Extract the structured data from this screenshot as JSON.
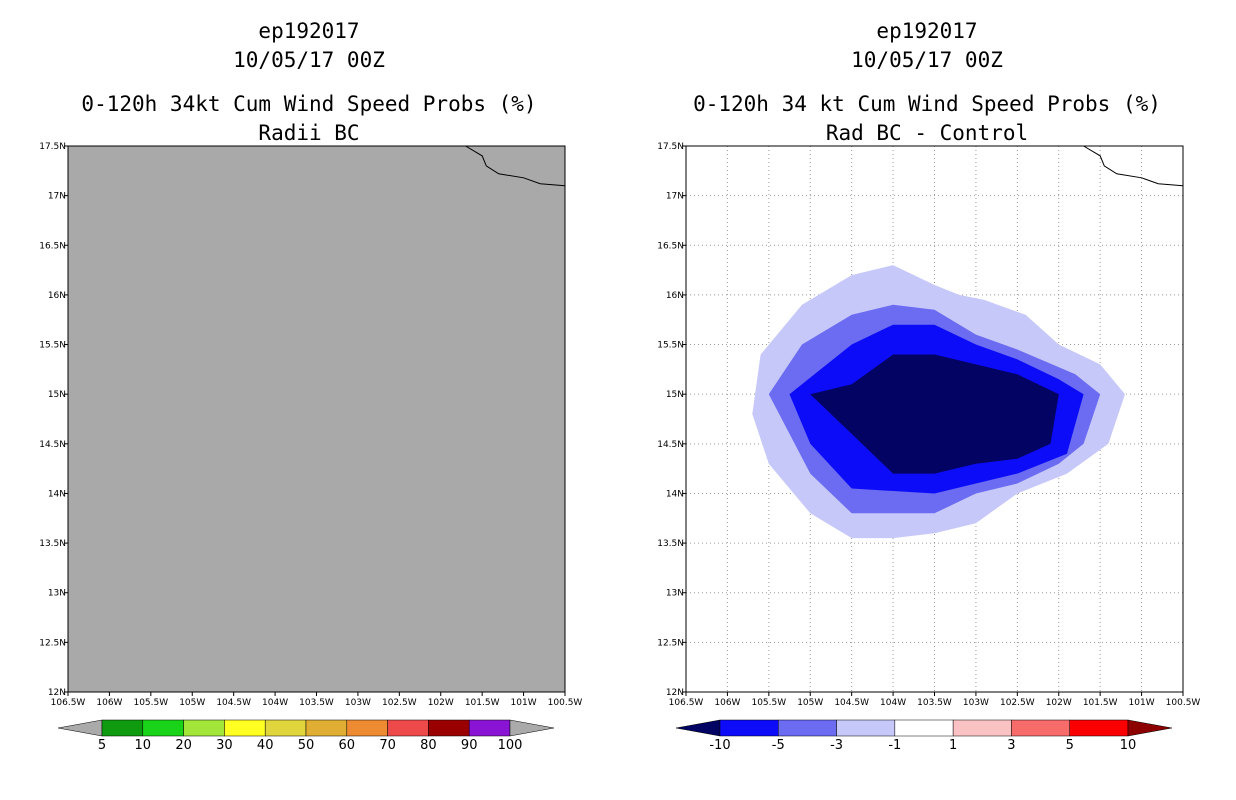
{
  "left": {
    "title_storm": "ep192017",
    "title_time": "10/05/17 00Z",
    "title_product": "0-120h 34kt Cum Wind Speed Probs (%)",
    "title_sub": "Radii BC",
    "field_color": "#a9a9a9",
    "colorbar": {
      "labels": [
        "5",
        "10",
        "20",
        "30",
        "40",
        "50",
        "60",
        "70",
        "80",
        "90",
        "100"
      ],
      "colors": [
        "#aaaaaa",
        "#0f9b10",
        "#19d319",
        "#a3e63a",
        "#ffff22",
        "#e0d53a",
        "#e0ae33",
        "#ee8a31",
        "#ef4a4a",
        "#9b0000",
        "#8a14d3",
        "#aaaaaa"
      ]
    }
  },
  "right": {
    "title_storm": "ep192017",
    "title_time": "10/05/17 00Z",
    "title_product": "0-120h 34 kt Cum Wind Speed Probs (%)",
    "title_sub": "Rad BC - Control",
    "contour_colors": [
      "#c7c8fa",
      "#6b6cf2",
      "#0c0cf8",
      "#030363"
    ],
    "colorbar": {
      "labels": [
        "-10",
        "-5",
        "-3",
        "-1",
        "1",
        "3",
        "5",
        "10"
      ],
      "colors": [
        "#030363",
        "#0c0cf8",
        "#6b6cf2",
        "#c7c8fa",
        "#ffffff",
        "#fac2c2",
        "#f76b6b",
        "#fb0000",
        "#8c0000"
      ]
    }
  },
  "axes": {
    "x_ticks": [
      "106.5W",
      "106W",
      "105.5W",
      "105W",
      "104.5W",
      "104W",
      "103.5W",
      "103W",
      "102.5W",
      "102W",
      "101.5W",
      "101W",
      "100.5W"
    ],
    "y_ticks": [
      "12N",
      "12.5N",
      "13N",
      "13.5N",
      "14N",
      "14.5N",
      "15N",
      "15.5N",
      "16N",
      "16.5N",
      "17N",
      "17.5N"
    ],
    "lon_range": [
      -106.5,
      -100.5
    ],
    "lat_range": [
      12,
      17.5
    ]
  },
  "chart_data": {
    "type": "heatmap",
    "panels": [
      {
        "title": "0-120h 34kt Cum Wind Speed Probs (%)",
        "subtitle": "Radii BC",
        "field": "uniform below lowest level (<5%)",
        "levels": [
          5,
          10,
          20,
          30,
          40,
          50,
          60,
          70,
          80,
          90,
          100
        ]
      },
      {
        "title": "0-120h 34 kt Cum Wind Speed Probs (%)",
        "subtitle": "Rad BC - Control",
        "levels": [
          -10,
          -5,
          -3,
          -1,
          1,
          3,
          5,
          10
        ],
        "contours": [
          {
            "level": -1,
            "polygon_lonlat": [
              [
                -104.5,
                16.2
              ],
              [
                -104,
                16.3
              ],
              [
                -103.5,
                16.1
              ],
              [
                -103.2,
                16.0
              ],
              [
                -102.9,
                15.95
              ],
              [
                -102.4,
                15.8
              ],
              [
                -102,
                15.5
              ],
              [
                -101.5,
                15.3
              ],
              [
                -101.2,
                15.0
              ],
              [
                -101.4,
                14.5
              ],
              [
                -101.9,
                14.2
              ],
              [
                -102.5,
                14.0
              ],
              [
                -103,
                13.7
              ],
              [
                -103.5,
                13.6
              ],
              [
                -104,
                13.55
              ],
              [
                -104.5,
                13.55
              ],
              [
                -105,
                13.8
              ],
              [
                -105.5,
                14.3
              ],
              [
                -105.7,
                14.8
              ],
              [
                -105.6,
                15.4
              ],
              [
                -105.1,
                15.9
              ]
            ]
          },
          {
            "level": -3,
            "polygon_lonlat": [
              [
                -104.5,
                15.8
              ],
              [
                -104,
                15.9
              ],
              [
                -103.5,
                15.85
              ],
              [
                -103,
                15.6
              ],
              [
                -102.5,
                15.45
              ],
              [
                -101.8,
                15.2
              ],
              [
                -101.5,
                15.0
              ],
              [
                -101.7,
                14.5
              ],
              [
                -102,
                14.3
              ],
              [
                -102.5,
                14.1
              ],
              [
                -103,
                14.0
              ],
              [
                -103.5,
                13.8
              ],
              [
                -104.5,
                13.8
              ],
              [
                -105,
                14.2
              ],
              [
                -105.5,
                15.0
              ],
              [
                -105.1,
                15.5
              ]
            ]
          },
          {
            "level": -5,
            "polygon_lonlat": [
              [
                -104.5,
                15.5
              ],
              [
                -104,
                15.7
              ],
              [
                -103.5,
                15.7
              ],
              [
                -103,
                15.5
              ],
              [
                -102.5,
                15.35
              ],
              [
                -102,
                15.15
              ],
              [
                -101.7,
                15.0
              ],
              [
                -101.9,
                14.4
              ],
              [
                -102.5,
                14.2
              ],
              [
                -103,
                14.1
              ],
              [
                -103.5,
                14.0
              ],
              [
                -104.5,
                14.05
              ],
              [
                -105,
                14.5
              ],
              [
                -105.25,
                15.0
              ]
            ]
          },
          {
            "level": -10,
            "polygon_lonlat": [
              [
                -104.5,
                15.1
              ],
              [
                -104,
                15.4
              ],
              [
                -103.5,
                15.4
              ],
              [
                -103,
                15.3
              ],
              [
                -102.5,
                15.2
              ],
              [
                -102,
                15.0
              ],
              [
                -102.1,
                14.5
              ],
              [
                -102.5,
                14.35
              ],
              [
                -103,
                14.3
              ],
              [
                -103.5,
                14.2
              ],
              [
                -104,
                14.2
              ],
              [
                -104.5,
                14.6
              ],
              [
                -105,
                15.0
              ]
            ]
          }
        ]
      }
    ]
  }
}
